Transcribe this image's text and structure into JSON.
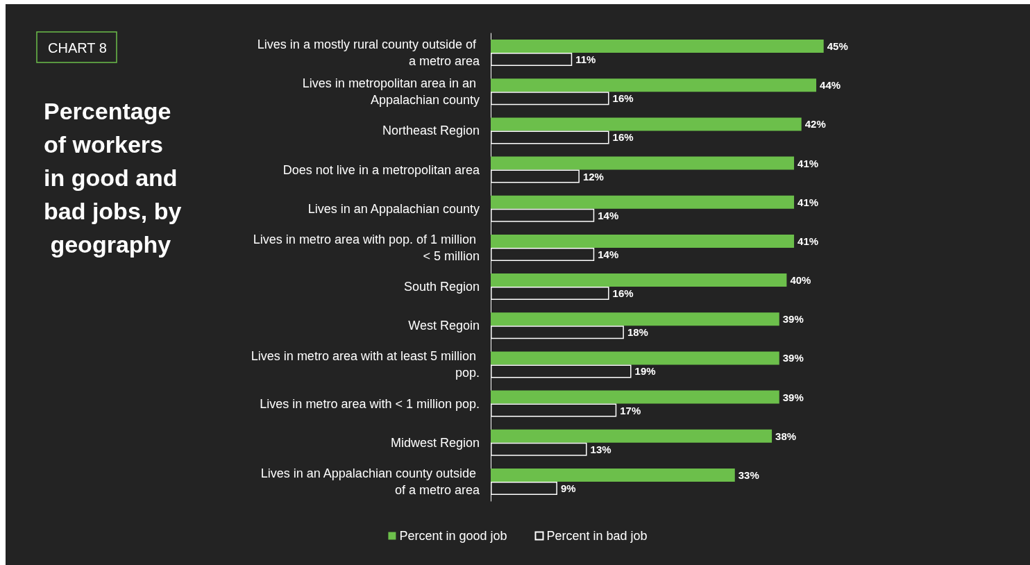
{
  "chart_data": {
    "type": "bar",
    "orientation": "horizontal",
    "subtitle": "CHART 8",
    "title": "Percentage of workers in good and bad jobs, by geography",
    "categories": [
      "Lives in a mostly rural county outside of a metro area",
      "Lives in metropolitan area in an Appalachian county",
      "Northeast Region",
      "Does not live in a metropolitan area",
      "Lives in an Appalachian county",
      "Lives in metro area with pop. of 1 million < 5 million",
      "South Region",
      "West Regoin",
      "Lives in metro area with at least 5 million pop.",
      "Lives in metro area with < 1 million pop.",
      "Midwest Region",
      "Lives in an Appalachian county outside of a metro area"
    ],
    "series": [
      {
        "name": "Percent in good job",
        "color": "#6cbf4b",
        "values": [
          45,
          44,
          42,
          41,
          41,
          41,
          40,
          39,
          39,
          39,
          38,
          33
        ],
        "value_labels": [
          "45%",
          "44%",
          "42%",
          "41%",
          "41%",
          "41%",
          "40%",
          "39%",
          "39%",
          "39%",
          "38%",
          "33%"
        ]
      },
      {
        "name": "Percent in bad job",
        "color": "#ffffff",
        "values": [
          11,
          16,
          16,
          12,
          14,
          14,
          16,
          18,
          19,
          17,
          13,
          9
        ],
        "value_labels": [
          "11%",
          "16%",
          "16%",
          "12%",
          "14%",
          "14%",
          "16%",
          "18%",
          "19%",
          "17%",
          "13%",
          "9%"
        ]
      }
    ],
    "legend": "bottom",
    "grid": false
  }
}
